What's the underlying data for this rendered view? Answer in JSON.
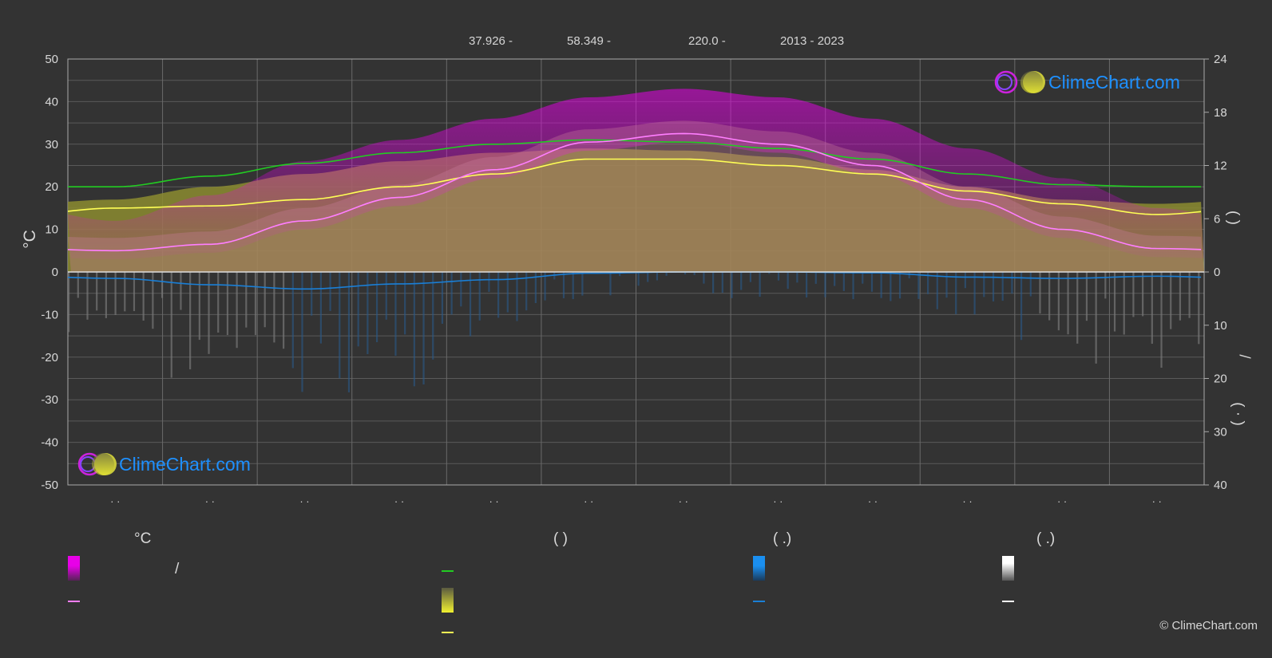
{
  "header": {
    "lat": "37.926 -",
    "lon": "58.349 -",
    "elevation": "220.0 -",
    "years": "2013 - 2023"
  },
  "axes": {
    "left_unit": "°C",
    "left_ticks": [
      "50",
      "40",
      "30",
      "20",
      "10",
      "0",
      "-10",
      "-20",
      "-30",
      "-40",
      "-50"
    ],
    "right_ticks_top": [
      "24",
      "18",
      "12",
      "6",
      "0"
    ],
    "right_ticks_bottom": [
      "10",
      "20",
      "30",
      "40"
    ],
    "right_label_top": "(    )",
    "right_label_slash": "/",
    "right_label_bottom": "(  ·  )",
    "month_ticks": [
      "· ·",
      "· ·",
      "· ·",
      "· ·",
      "· ·",
      "· ·",
      "· ·",
      "· ·",
      "· ·",
      "· ·",
      "· ·",
      "· ·"
    ]
  },
  "legend": {
    "col1_head": "°C",
    "col1_slash": "/",
    "col2_head": "(         )",
    "col3_head": "(   .)",
    "col4_head": "(   .)",
    "colors": {
      "temp_range": "#e800e8",
      "avg_temp": "#ff7eff",
      "daylight": "#22cc22",
      "sunshine": "#e6e633",
      "sunshine_avg": "#ffff55",
      "rain": "#1a7fd6",
      "snow": "#ffffff"
    }
  },
  "logo": {
    "text": "ClimeChart.com"
  },
  "copyright": "© ClimeChart.com",
  "chart_data": {
    "type": "area",
    "x": [
      "Jan",
      "Feb",
      "Mar",
      "Apr",
      "May",
      "Jun",
      "Jul",
      "Aug",
      "Sep",
      "Oct",
      "Nov",
      "Dec"
    ],
    "ylim_left": [
      -50,
      50
    ],
    "ylim_right_hours": [
      0,
      24
    ],
    "ylim_right_precip": [
      0,
      40
    ],
    "series": [
      {
        "values": [
          5,
          6.5,
          12,
          17.5,
          24,
          30.5,
          32.5,
          30,
          25,
          17,
          10,
          5.5
        ]
      },
      {
        "values": [
          -1.5,
          -3,
          -4,
          -2.8,
          -1.8,
          -0.3,
          0,
          0,
          -0.2,
          -1.2,
          -1.5,
          -1
        ]
      },
      {
        "values": [
          20,
          22.5,
          25.5,
          28,
          30,
          31,
          30.5,
          29,
          26.5,
          23,
          20.5,
          20
        ]
      },
      {
        "values": [
          15,
          15.5,
          17,
          20,
          23,
          26.5,
          26.5,
          25,
          23,
          19,
          16,
          13.5
        ]
      },
      {
        "values": [
          17,
          20,
          23,
          26,
          28,
          29,
          28.5,
          27,
          24,
          20,
          17,
          16
        ]
      },
      {
        "values": [
          12,
          18,
          26,
          31,
          36,
          41,
          43,
          41,
          36,
          29,
          22,
          15
        ]
      },
      {
        "values": [
          -2,
          -4,
          -5,
          -4,
          -2,
          0,
          0,
          0,
          0,
          -1,
          -3,
          -4
        ]
      }
    ]
  }
}
